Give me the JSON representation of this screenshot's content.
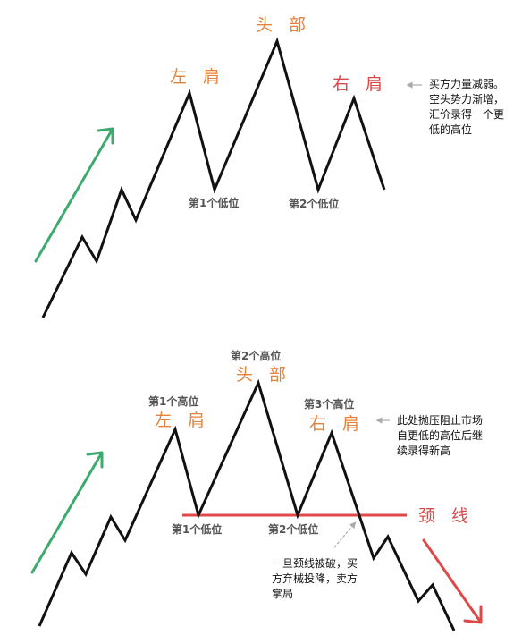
{
  "colors": {
    "price_line": "#111111",
    "uptrend_arrow": "#3daa6e",
    "downtrend_arrow": "#e04848",
    "neckline": "#e04848",
    "label_orange": "#e8823a",
    "label_red": "#d84a4a",
    "label_gray": "#555555",
    "pointer_arrow": "#aaaaaa"
  },
  "top_diagram": {
    "head_label": "头 部",
    "left_shoulder_label": "左 肩",
    "right_shoulder_label": "右 肩",
    "low_1_label": "第1个低位",
    "low_2_label": "第2个低位",
    "note_lines": [
      "买方力量减弱。",
      "空头势力渐增，",
      "汇价录得一个更",
      "低的高位"
    ]
  },
  "bottom_diagram": {
    "head_label": "头 部",
    "head_high_label": "第2个高位",
    "left_shoulder_label": "左 肩",
    "left_high_label": "第1个高位",
    "right_shoulder_label": "右 肩",
    "right_high_label": "第3个高位",
    "low_1_label": "第1个低位",
    "low_2_label": "第2个低位",
    "neckline_label": "颈 线",
    "resistance_note_lines": [
      "此处抛压阻止市场",
      "自更低的高位后继",
      "续录得新高"
    ],
    "breakdown_note_lines": [
      "一旦颈线被破，买",
      "方弃械投降，卖方",
      "掌局"
    ]
  }
}
